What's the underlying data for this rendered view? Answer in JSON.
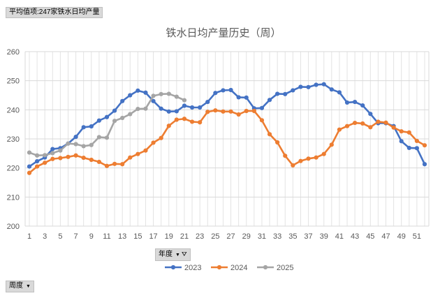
{
  "pivot": {
    "value_field": "平均值项:247家铁水日均产量",
    "column_field": "年度",
    "row_field": "周度",
    "dropdown_icon": "dropdown-arrow-icon",
    "filter_icon": "funnel-filter-icon"
  },
  "chart_data": {
    "type": "line",
    "title": "铁水日均产量历史（周）",
    "xlabel": "",
    "ylabel": "",
    "ylim": [
      200,
      260
    ],
    "yticks": [
      200,
      210,
      220,
      230,
      240,
      250,
      260
    ],
    "xlim": [
      1,
      52
    ],
    "xticks": [
      1,
      3,
      5,
      7,
      9,
      11,
      13,
      15,
      17,
      19,
      21,
      23,
      25,
      27,
      29,
      31,
      33,
      35,
      37,
      39,
      41,
      43,
      45,
      47,
      49,
      51
    ],
    "grid": true,
    "legend": "bottom",
    "series": [
      {
        "name": "2023",
        "color": "#4472c4",
        "values": [
          220.5,
          222.3,
          223.6,
          226.5,
          226.8,
          228.4,
          230.7,
          234.0,
          234.3,
          236.3,
          237.5,
          239.7,
          243.0,
          245.0,
          246.6,
          245.9,
          243.0,
          240.4,
          239.4,
          239.5,
          241.4,
          240.8,
          240.8,
          242.7,
          245.8,
          246.7,
          246.8,
          244.3,
          244.2,
          240.5,
          240.6,
          243.4,
          245.5,
          245.4,
          246.7,
          247.9,
          247.8,
          248.6,
          248.8,
          247.0,
          246.0,
          242.5,
          242.7,
          241.5,
          238.6,
          235.4,
          235.4,
          234.4,
          229.2,
          226.9,
          226.8,
          221.3
        ]
      },
      {
        "name": "2024",
        "color": "#ed7d31",
        "values": [
          218.3,
          220.5,
          221.8,
          223.1,
          223.4,
          223.8,
          224.3,
          223.5,
          222.8,
          222.1,
          220.7,
          221.4,
          221.3,
          223.6,
          224.8,
          226.0,
          228.7,
          230.3,
          234.5,
          236.6,
          236.9,
          235.9,
          235.7,
          239.3,
          239.8,
          239.4,
          239.4,
          238.4,
          239.6,
          239.6,
          236.4,
          231.6,
          228.8,
          224.2,
          220.9,
          222.4,
          223.2,
          223.6,
          224.8,
          228.0,
          233.2,
          234.4,
          235.5,
          235.3,
          234.0,
          235.9,
          235.6,
          233.9,
          232.6,
          232.2,
          229.3,
          227.8
        ]
      },
      {
        "name": "2025",
        "color": "#a5a5a5",
        "values": [
          225.3,
          224.3,
          224.4,
          225.1,
          226.0,
          228.4,
          228.2,
          227.5,
          227.9,
          230.6,
          230.4,
          236.2,
          237.2,
          238.5,
          240.3,
          240.4,
          244.8,
          245.4,
          245.5,
          244.5,
          243.3
        ]
      }
    ]
  }
}
